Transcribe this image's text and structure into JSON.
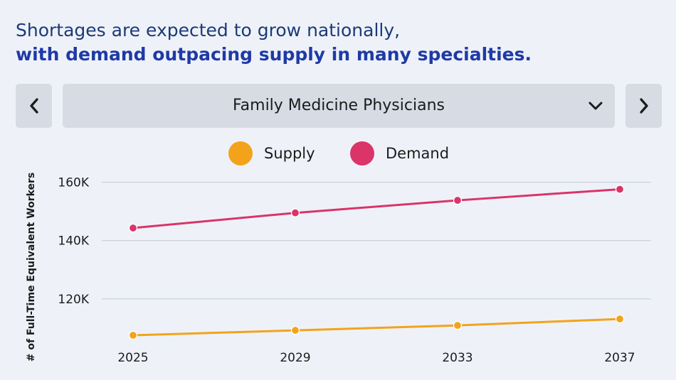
{
  "headline": {
    "line1": "Shortages are expected to grow nationally,",
    "line2": "with demand outpacing supply in many specialties."
  },
  "selector": {
    "value": "Family Medicine Physicians",
    "prev_icon": "chevron-left-icon",
    "next_icon": "chevron-right-icon",
    "dropdown_icon": "chevron-down-icon"
  },
  "legend": [
    {
      "label": "Supply",
      "color": "#f3a31b"
    },
    {
      "label": "Demand",
      "color": "#da3468"
    }
  ],
  "chart_data": {
    "type": "line",
    "x": [
      2025,
      2029,
      2033,
      2037
    ],
    "ylabel": "# of Full-Time Equivalent Workers",
    "ylim": [
      108000,
      166000
    ],
    "yticks": [
      120000,
      140000,
      160000
    ],
    "ytick_labels": [
      "120K",
      "140K",
      "160K"
    ],
    "grid": true,
    "legend_position": "top-center",
    "series": [
      {
        "name": "Supply",
        "color": "#f3a31b",
        "values": [
          107500,
          109200,
          110900,
          113100
        ]
      },
      {
        "name": "Demand",
        "color": "#da3468",
        "values": [
          144300,
          149500,
          153800,
          157600
        ]
      }
    ]
  }
}
